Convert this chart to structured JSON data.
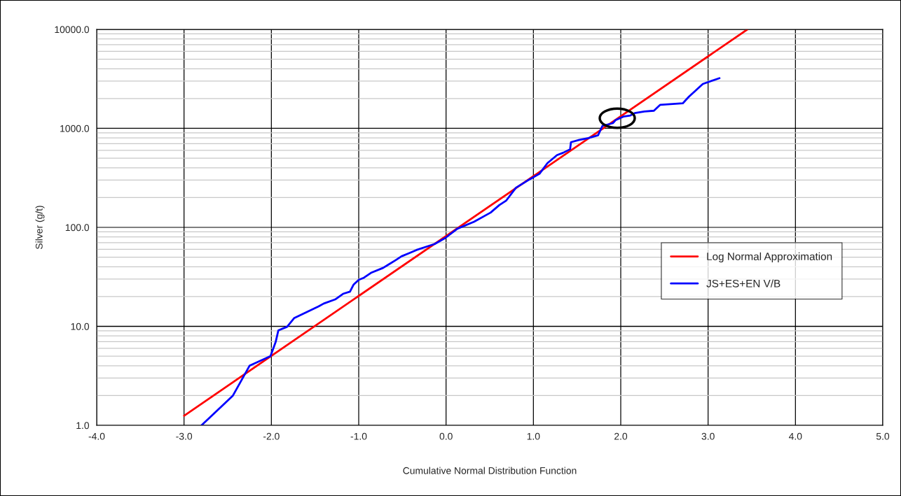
{
  "chart_data": {
    "type": "line",
    "xlabel": "Cumulative Normal Distribution Function",
    "ylabel": "Silver (g/t)",
    "series": [
      {
        "name": "Log Normal Approximation",
        "color": "#ff0000",
        "x": [
          -3.0,
          3.45
        ],
        "values": [
          1.25,
          10000
        ]
      },
      {
        "name": "JS+ES+EN V/B",
        "color": "#0000ff",
        "x": [
          -2.8,
          -2.44,
          -2.25,
          -2.01,
          -1.95,
          -1.92,
          -1.82,
          -1.74,
          -1.46,
          -1.4,
          -1.27,
          -1.18,
          -1.1,
          -1.06,
          -1.0,
          -0.94,
          -0.86,
          -0.72,
          -0.66,
          -0.58,
          -0.51,
          -0.42,
          -0.34,
          -0.21,
          -0.13,
          -0.01,
          0.13,
          0.32,
          0.51,
          0.61,
          0.69,
          0.8,
          0.93,
          1.07,
          1.16,
          1.27,
          1.34,
          1.42,
          1.43,
          1.52,
          1.63,
          1.74,
          1.79,
          1.91,
          1.94,
          2.03,
          2.11,
          2.16,
          2.27,
          2.38,
          2.45,
          2.71,
          2.78,
          2.94,
          3.13
        ],
        "values": [
          1.0,
          2.0,
          4.0,
          5.0,
          7.0,
          9.1,
          9.9,
          12.1,
          15.9,
          17.0,
          18.7,
          21.3,
          22.4,
          26.3,
          29.5,
          31,
          34.7,
          39,
          42,
          46.5,
          51,
          55,
          59,
          64.5,
          68,
          78,
          97,
          114,
          141,
          168,
          187,
          251,
          296,
          348,
          445,
          537,
          567,
          615,
          725,
          764,
          799,
          851,
          1059,
          1130,
          1211,
          1315,
          1350,
          1426,
          1480,
          1508,
          1726,
          1790,
          2088,
          2810,
          3215
        ]
      }
    ],
    "log": "y",
    "xlim": [
      -4.0,
      5.0
    ],
    "xticks": [
      {
        "value": -4,
        "label": "-4.0"
      },
      {
        "value": -3,
        "label": "-3.0"
      },
      {
        "value": -2,
        "label": "-2.0"
      },
      {
        "value": -1,
        "label": "-1.0"
      },
      {
        "value": 0,
        "label": "0.0"
      },
      {
        "value": 1,
        "label": "1.0"
      },
      {
        "value": 2,
        "label": "2.0"
      },
      {
        "value": 3,
        "label": "3.0"
      },
      {
        "value": 4,
        "label": "4.0"
      },
      {
        "value": 5,
        "label": "5.0"
      }
    ],
    "ylim": [
      1,
      10000
    ],
    "yticks": [
      {
        "value": 1,
        "label": "1.0"
      },
      {
        "value": 10,
        "label": "10.0"
      },
      {
        "value": 100,
        "label": "100.0"
      },
      {
        "value": 1000,
        "label": "1000.0"
      },
      {
        "value": 10000,
        "label": "10000.0"
      }
    ],
    "grid": true,
    "legend": "right",
    "marker": "none",
    "line_style": "solid"
  }
}
